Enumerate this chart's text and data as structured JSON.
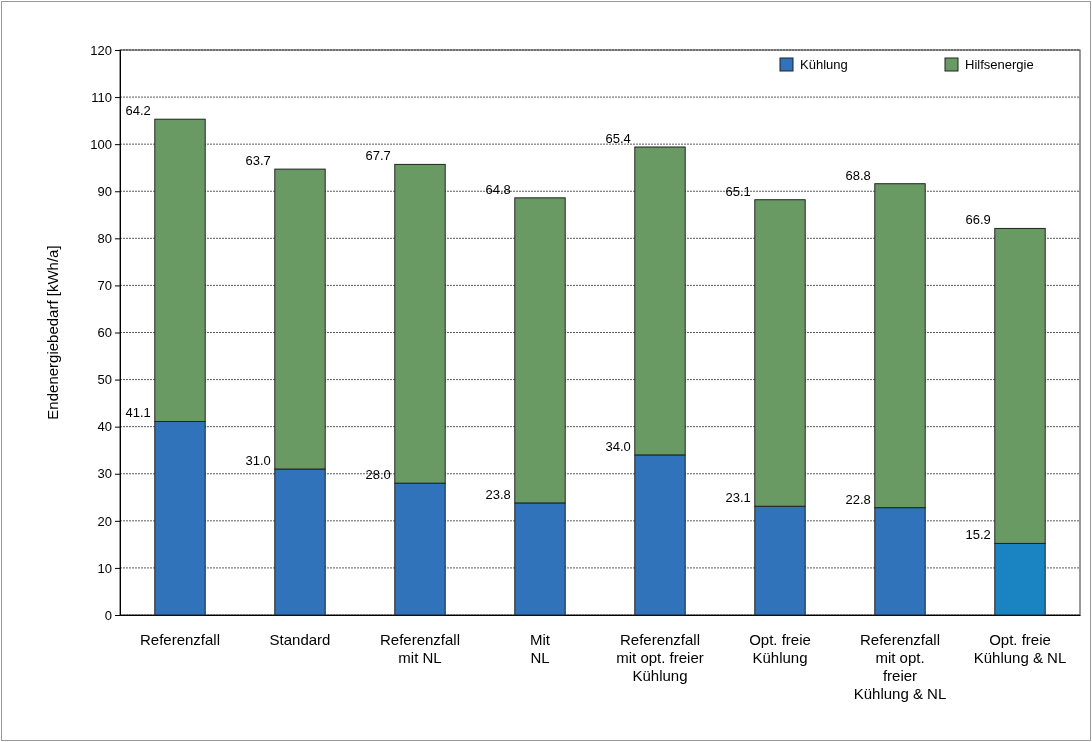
{
  "chart_data": {
    "type": "bar",
    "stacked": true,
    "ylabel": "Endenergiebedarf [kWh/a]",
    "categories": [
      "Referenzfall",
      "Standard",
      "Referenzfall\nmit NL",
      "Mit\nNL",
      "Referenzfall\nmit opt. freier\nKühlung",
      "Opt. freie\nKühlung",
      "Referenzfall\nmit opt.\nfreier\nKühlung & NL",
      "Opt. freie\nKühlung & NL"
    ],
    "series": [
      {
        "name": "Kühlung",
        "color": "#3173bb",
        "colors": [
          "#3173bb",
          "#3173bb",
          "#3173bb",
          "#3173bb",
          "#3173bb",
          "#3173bb",
          "#3173bb",
          "#1a84c2"
        ],
        "values": [
          41.1,
          31.0,
          28.0,
          23.8,
          34.0,
          23.1,
          22.8,
          15.2
        ]
      },
      {
        "name": "Hilfsenergie",
        "color": "#6a9a64",
        "values": [
          64.2,
          63.7,
          67.7,
          64.8,
          65.4,
          65.1,
          68.8,
          66.9
        ]
      }
    ],
    "value_labels": [
      [
        "41.1",
        "31.0",
        "28.0",
        "23.8",
        "34.0",
        "23.1",
        "22.8",
        "15.2"
      ],
      [
        "64.2",
        "63.7",
        "67.7",
        "64.8",
        "65.4",
        "65.1",
        "68.8",
        "66.9"
      ]
    ],
    "ylim": [
      0,
      120
    ],
    "yticks": [
      0,
      10,
      20,
      30,
      40,
      50,
      60,
      70,
      80,
      90,
      100,
      110,
      120
    ],
    "grid": "y",
    "legend": "top right"
  }
}
